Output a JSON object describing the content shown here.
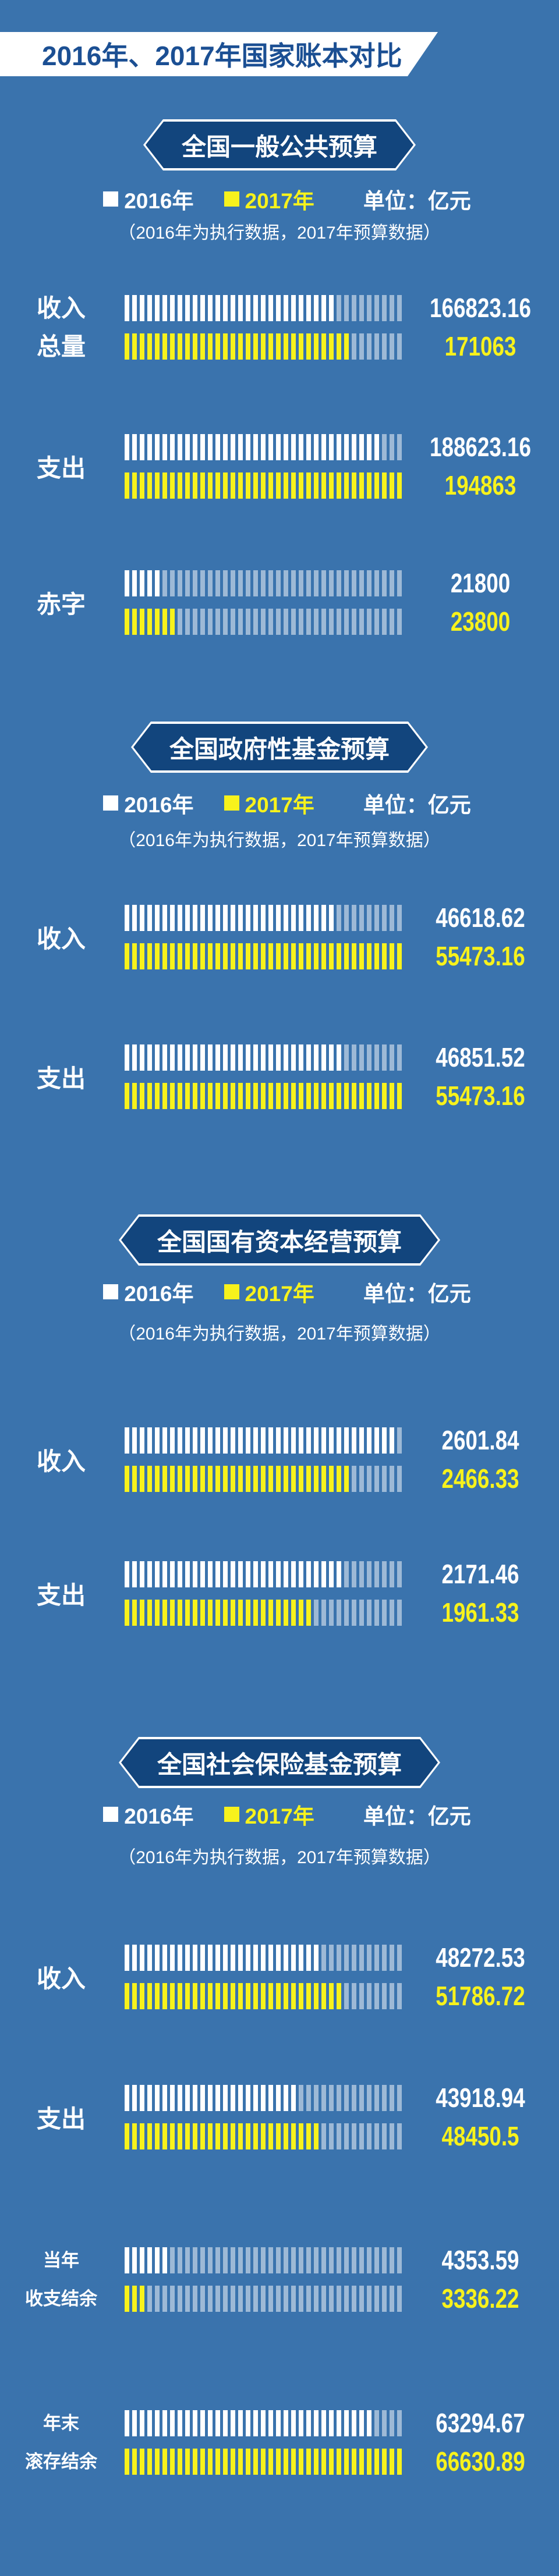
{
  "page": {
    "title": "2016年、2017年国家账本对比"
  },
  "colors": {
    "background": "#3A73AD",
    "badge_navy": "#12457D",
    "title_navy": "#1B4F93",
    "bar_2016": "#FFFFFF",
    "bar_2017": "#F7F21C",
    "bar_track_unfilled": "rgba(255,255,255,0.5)"
  },
  "chart_data": [
    {
      "type": "bar",
      "orientation": "horizontal",
      "title": "全国一般公共预算",
      "legend": [
        "2016年",
        "2017年"
      ],
      "unit_label": "单位：亿元",
      "note": "（2016年为执行数据，2017年预算数据）",
      "categories": [
        "收入总量",
        "支出",
        "赤字"
      ],
      "categories_lines": [
        [
          "收入",
          "总量"
        ],
        [
          "支出"
        ],
        [
          "赤字"
        ]
      ],
      "series": [
        {
          "name": "2016年",
          "values": [
            166823.16,
            188623.16,
            21800
          ]
        },
        {
          "name": "2017年",
          "values": [
            171063,
            194863,
            23800
          ]
        }
      ],
      "scale_max": 194863,
      "total_segments": 37,
      "filled_segments": [
        [
          28,
          30
        ],
        [
          34,
          37
        ],
        [
          5,
          7
        ]
      ]
    },
    {
      "type": "bar",
      "orientation": "horizontal",
      "title": "全国政府性基金预算",
      "legend": [
        "2016年",
        "2017年"
      ],
      "unit_label": "单位：亿元",
      "note": "（2016年为执行数据，2017年预算数据）",
      "categories": [
        "收入",
        "支出"
      ],
      "categories_lines": [
        [
          "收入"
        ],
        [
          "支出"
        ]
      ],
      "series": [
        {
          "name": "2016年",
          "values": [
            46618.62,
            46851.52
          ]
        },
        {
          "name": "2017年",
          "values": [
            55473.16,
            55473.16
          ]
        }
      ],
      "scale_max": 55473.16,
      "total_segments": 37,
      "filled_segments": [
        [
          28,
          37
        ],
        [
          29,
          37
        ]
      ]
    },
    {
      "type": "bar",
      "orientation": "horizontal",
      "title": "全国国有资本经营预算",
      "legend": [
        "2016年",
        "2017年"
      ],
      "unit_label": "单位：亿元",
      "note": "（2016年为执行数据，2017年预算数据）",
      "categories": [
        "收入",
        "支出"
      ],
      "categories_lines": [
        [
          "收入"
        ],
        [
          "支出"
        ]
      ],
      "series": [
        {
          "name": "2016年",
          "values": [
            2601.84,
            2171.46
          ]
        },
        {
          "name": "2017年",
          "values": [
            2466.33,
            1961.33
          ]
        }
      ],
      "scale_max": 2601.84,
      "total_segments": 37,
      "filled_segments": [
        [
          36,
          30
        ],
        [
          29,
          25
        ]
      ]
    },
    {
      "type": "bar",
      "orientation": "horizontal",
      "title": "全国社会保险基金预算",
      "legend": [
        "2016年",
        "2017年"
      ],
      "unit_label": "单位：亿元",
      "note": "（2016年为执行数据，2017年预算数据）",
      "categories": [
        "收入",
        "支出",
        "当年收支结余",
        "年末滚存结余"
      ],
      "categories_lines": [
        [
          "收入"
        ],
        [
          "支出"
        ],
        [
          "当年",
          "收支结余"
        ],
        [
          "年末",
          "滚存结余"
        ]
      ],
      "series": [
        {
          "name": "2016年",
          "values": [
            48272.53,
            43918.94,
            4353.59,
            63294.67
          ]
        },
        {
          "name": "2017年",
          "values": [
            51786.72,
            48450.5,
            3336.22,
            66630.89
          ]
        }
      ],
      "scale_max": 66630.89,
      "total_segments": 37,
      "filled_segments": [
        [
          26,
          29
        ],
        [
          23,
          26
        ],
        [
          6,
          3
        ],
        [
          33,
          37
        ]
      ]
    }
  ]
}
